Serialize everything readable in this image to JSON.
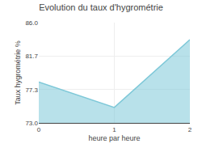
{
  "chart_data": {
    "type": "area",
    "title": "Evolution du taux d'hygrométrie",
    "x_label": "heure par heure",
    "y_label": "Taux hygrométrie %",
    "x": [
      0,
      1,
      2
    ],
    "values": [
      78.3,
      75.0,
      83.8
    ],
    "color": "#7ec8d8",
    "xlim": [
      0,
      2
    ],
    "ylim": [
      73.0,
      86.0
    ],
    "xticks": [
      0,
      1,
      2
    ],
    "yticks": [
      {
        "value": 73.0,
        "label": "73.0"
      },
      77.3,
      81.7,
      {
        "value": 86.0,
        "label": "86.0"
      }
    ],
    "grid": true
  }
}
